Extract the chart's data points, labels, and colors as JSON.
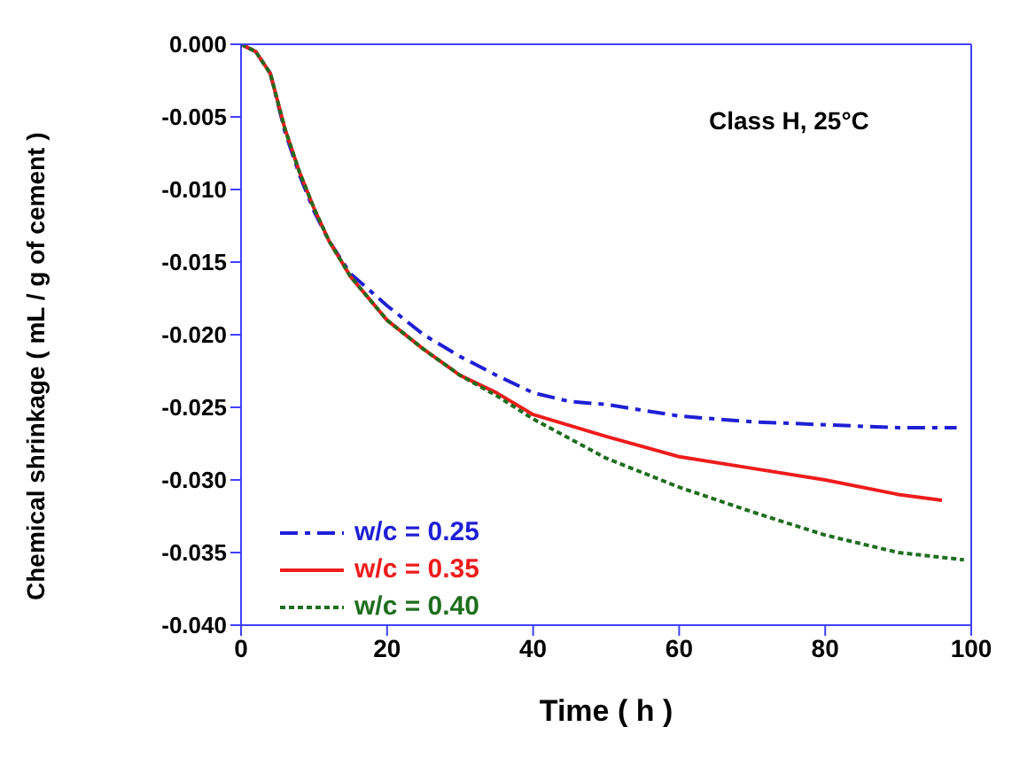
{
  "chart_data": {
    "type": "line",
    "xlabel": "Time ( h )",
    "ylabel": "Chemical shrinkage ( mL / g of cement )",
    "annotations": [
      "Class H, 25°C"
    ],
    "xlim": [
      0,
      100
    ],
    "xticks": [
      0,
      20,
      40,
      60,
      80,
      100
    ],
    "ylim": [
      -0.04,
      0
    ],
    "yticks": [
      {
        "value": -0.04,
        "label": "-0.040"
      },
      {
        "value": -0.035,
        "label": "-0.035"
      },
      {
        "value": -0.03,
        "label": "-0.030"
      },
      {
        "value": -0.025,
        "label": "-0.025"
      },
      {
        "value": -0.02,
        "label": "-0.020"
      },
      {
        "value": -0.015,
        "label": "-0.015"
      },
      {
        "value": -0.01,
        "label": "-0.010"
      },
      {
        "value": -0.005,
        "label": "-0.005"
      },
      {
        "value": 0,
        "label": "0.000"
      }
    ],
    "grid": false,
    "legend": "bottom left",
    "marker": "none",
    "series": [
      {
        "name": "w/c = 0.25",
        "color": "#1f1fd6",
        "line_style": "dashed",
        "x": [
          0,
          2,
          4,
          6,
          8,
          10,
          12,
          15,
          20,
          25,
          30,
          35,
          40,
          45,
          50,
          55,
          60,
          70,
          80,
          90,
          98
        ],
        "values": [
          0,
          -0.0005,
          -0.002,
          -0.006,
          -0.009,
          -0.0115,
          -0.0135,
          -0.0158,
          -0.018,
          -0.02,
          -0.0215,
          -0.0228,
          -0.024,
          -0.0246,
          -0.0248,
          -0.0252,
          -0.0256,
          -0.026,
          -0.0262,
          -0.0264,
          -0.0264
        ]
      },
      {
        "name": "w/c = 0.35",
        "color": "#ee1c1c",
        "line_style": "solid",
        "x": [
          0,
          2,
          4,
          6,
          8,
          10,
          12,
          15,
          20,
          25,
          30,
          35,
          40,
          50,
          60,
          70,
          80,
          90,
          96
        ],
        "values": [
          0,
          -0.0005,
          -0.002,
          -0.0058,
          -0.0088,
          -0.0113,
          -0.0135,
          -0.016,
          -0.019,
          -0.021,
          -0.0228,
          -0.024,
          -0.0255,
          -0.027,
          -0.0284,
          -0.0292,
          -0.03,
          -0.031,
          -0.0314
        ]
      },
      {
        "name": "w/c = 0.40",
        "color": "#1e6e1e",
        "line_style": "dotted",
        "x": [
          0,
          2,
          4,
          6,
          8,
          10,
          12,
          15,
          20,
          25,
          30,
          35,
          40,
          50,
          60,
          70,
          80,
          90,
          99
        ],
        "values": [
          0,
          -0.0005,
          -0.002,
          -0.0058,
          -0.0088,
          -0.0113,
          -0.0135,
          -0.016,
          -0.019,
          -0.021,
          -0.0228,
          -0.0242,
          -0.0258,
          -0.0285,
          -0.0305,
          -0.0322,
          -0.0338,
          -0.035,
          -0.0355
        ]
      }
    ]
  }
}
